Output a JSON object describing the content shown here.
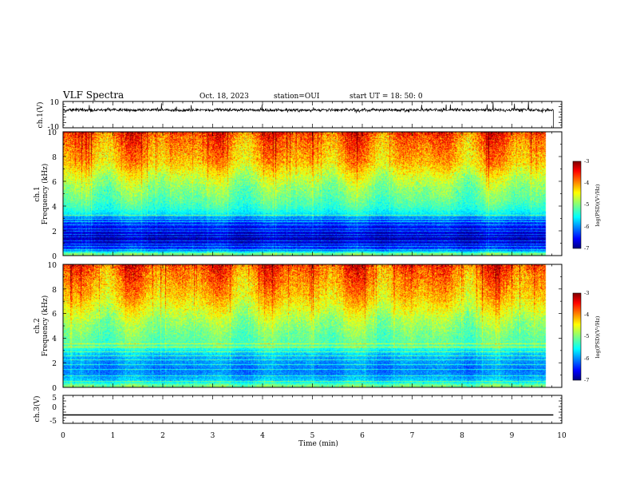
{
  "header": {
    "title": "VLF Spectra",
    "date": "Oct. 18, 2023",
    "station": "station=OUI",
    "start": "start  UT  =   18: 50: 0"
  },
  "chart_data": [
    {
      "type": "line",
      "name": "ch1-waveform",
      "ylabel": "ch.1(V)",
      "xlim": [
        0,
        10
      ],
      "ylim": [
        -10,
        10
      ],
      "y_ticks": [
        "10",
        "-10"
      ],
      "baseline": 3.5,
      "noise": 1.2,
      "data_end_min": 9.83
    },
    {
      "type": "heatmap",
      "name": "ch1-spectrogram",
      "ylabel_line1": "ch.1",
      "ylabel_line2": "Frequency (kHz)",
      "xlim": [
        0,
        10
      ],
      "ylim": [
        0,
        10
      ],
      "y_ticks": [
        "0",
        "2",
        "4",
        "6",
        "8",
        "10"
      ],
      "colorbar": {
        "label": "log(PSD)(V²/Hz)",
        "range": [
          -7,
          -3
        ],
        "ticks": [
          "-3",
          "-4",
          "-5",
          "-6",
          "-7"
        ]
      },
      "profile_freq_khz": [
        0.2,
        0.5,
        1.0,
        1.5,
        2.0,
        2.5,
        3.0,
        3.3,
        3.8,
        4.5,
        5.5,
        6.5,
        7.5,
        8.5,
        9.5,
        10.0
      ],
      "profile_log_psd": [
        -5.0,
        -6.2,
        -6.6,
        -6.8,
        -6.6,
        -6.4,
        -6.1,
        -5.6,
        -5.3,
        -5.1,
        -4.9,
        -4.6,
        -4.2,
        -4.0,
        -3.8,
        -3.6
      ],
      "spectral_lines_khz": [
        0.5,
        0.75,
        1.0,
        1.25,
        1.55,
        1.75,
        2.0,
        2.2,
        2.5,
        2.8,
        3.0,
        3.3
      ]
    },
    {
      "type": "heatmap",
      "name": "ch2-spectrogram",
      "ylabel_line1": "ch.2",
      "ylabel_line2": "Frequency (kHz)",
      "xlim": [
        0,
        10
      ],
      "ylim": [
        0,
        10
      ],
      "y_ticks": [
        "0",
        "2",
        "4",
        "6",
        "8",
        "10"
      ],
      "colorbar": {
        "label": "log(PSD)(V²/Hz)",
        "range": [
          -7,
          -3
        ],
        "ticks": [
          "-3",
          "-4",
          "-5",
          "-6",
          "-7"
        ]
      },
      "profile_freq_khz": [
        0.2,
        0.5,
        1.0,
        1.5,
        2.0,
        2.5,
        3.0,
        3.3,
        3.8,
        4.5,
        5.5,
        6.5,
        7.5,
        8.5,
        9.5,
        10.0
      ],
      "profile_log_psd": [
        -5.0,
        -5.6,
        -5.9,
        -6.0,
        -5.9,
        -5.8,
        -5.5,
        -5.2,
        -5.1,
        -5.0,
        -4.8,
        -4.5,
        -4.2,
        -4.0,
        -3.8,
        -3.6
      ],
      "spectral_lines_khz": [
        0.5,
        1.0,
        1.5,
        1.9,
        2.3,
        2.6,
        2.9,
        3.3,
        3.6
      ]
    },
    {
      "type": "line",
      "name": "ch3-waveform",
      "ylabel": "ch.3(V)",
      "xlim": [
        0,
        10
      ],
      "ylim": [
        -5,
        5
      ],
      "y_ticks": [
        "5",
        "0",
        "-5"
      ],
      "baseline": -2,
      "noise": 0,
      "data_end_min": 9.83
    }
  ],
  "time_axis": {
    "label": "Time  (min)",
    "ticks": [
      "0",
      "1",
      "2",
      "3",
      "4",
      "5",
      "6",
      "7",
      "8",
      "9",
      "10"
    ]
  }
}
